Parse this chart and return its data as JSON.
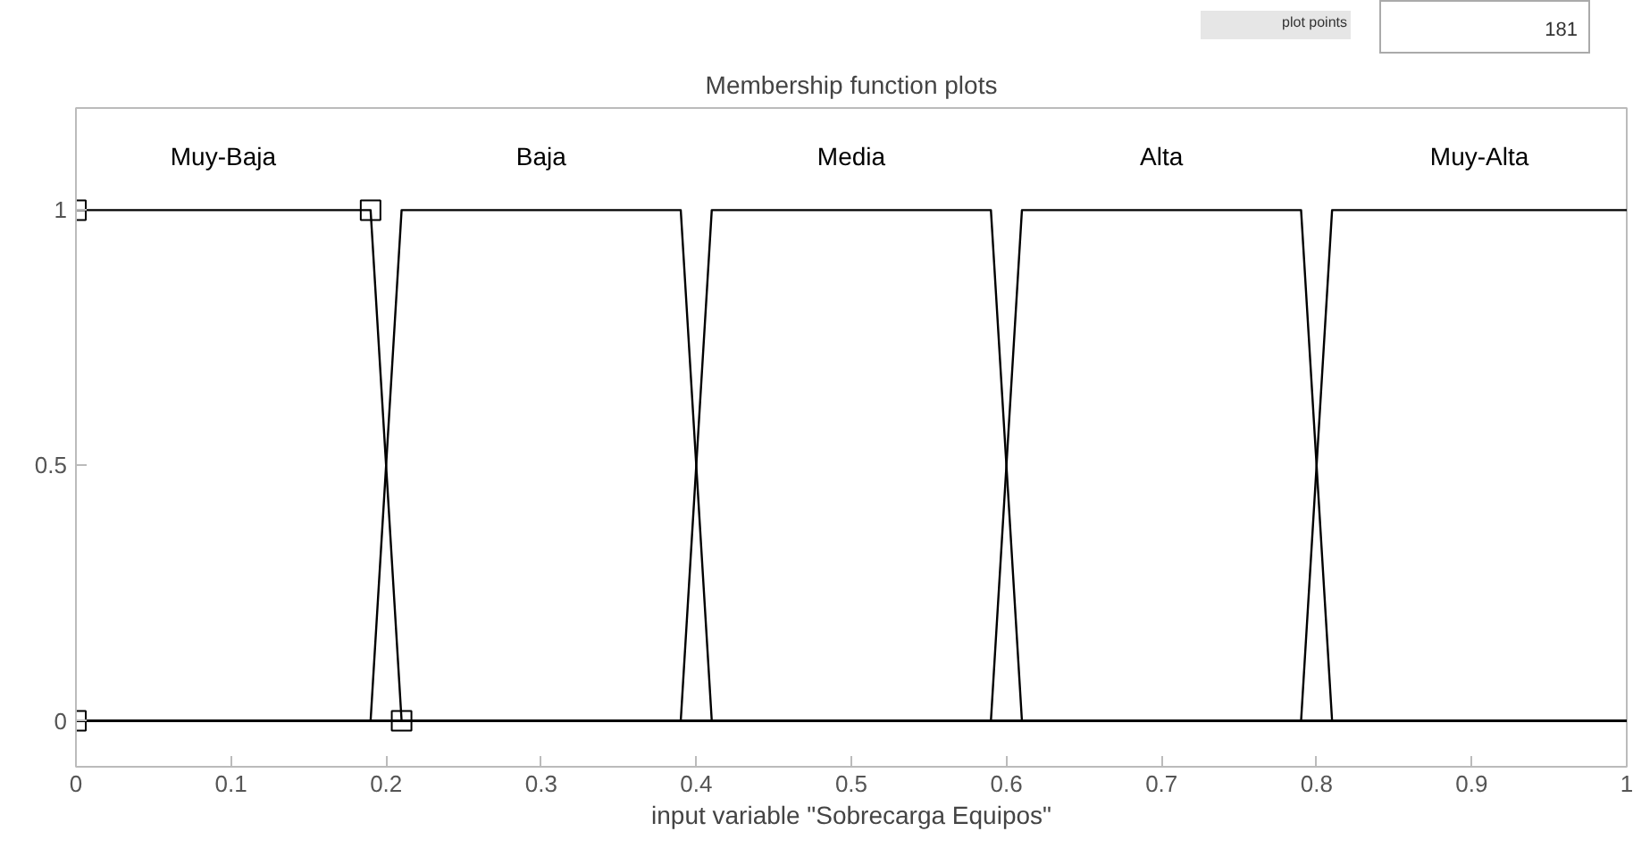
{
  "chart_data": {
    "type": "line",
    "title": "Membership function plots",
    "xlabel": "input variable \"Sobrecarga Equipos\"",
    "annotations": [
      "plot points",
      "181"
    ],
    "series": [
      {
        "name": "Muy-Baja",
        "color": "#000000",
        "x": [
          0,
          0.19,
          0.21,
          1
        ],
        "values": [
          1,
          1,
          0,
          0
        ]
      },
      {
        "name": "Baja",
        "color": "#000000",
        "x": [
          0,
          0.19,
          0.21,
          0.39,
          0.41,
          1
        ],
        "values": [
          0,
          0,
          1,
          1,
          0,
          0
        ]
      },
      {
        "name": "Media",
        "color": "#000000",
        "x": [
          0,
          0.39,
          0.41,
          0.59,
          0.61,
          1
        ],
        "values": [
          0,
          0,
          1,
          1,
          0,
          0
        ]
      },
      {
        "name": "Alta",
        "color": "#000000",
        "x": [
          0,
          0.59,
          0.61,
          0.79,
          0.81,
          1
        ],
        "values": [
          0,
          0,
          1,
          1,
          0,
          0
        ]
      },
      {
        "name": "Muy-Alta",
        "color": "#000000",
        "x": [
          0,
          0.79,
          0.81,
          1
        ],
        "values": [
          0,
          0,
          1,
          1
        ]
      },
      {
        "type": "scatter",
        "marker": "square",
        "color": "#000000",
        "x": [
          0,
          0.19,
          0.21,
          0
        ],
        "values": [
          1,
          1,
          0,
          0
        ]
      }
    ],
    "xlim": [
      0,
      1
    ],
    "ylim": [
      -0.09,
      1.2
    ],
    "xticks": [
      0,
      0.1,
      0.2,
      0.3,
      0.4,
      0.5,
      0.6,
      0.7,
      0.8,
      0.9,
      1
    ],
    "yticks": [
      0,
      0.5,
      1
    ],
    "grid": false,
    "marker": "none",
    "line_style": "solid"
  }
}
